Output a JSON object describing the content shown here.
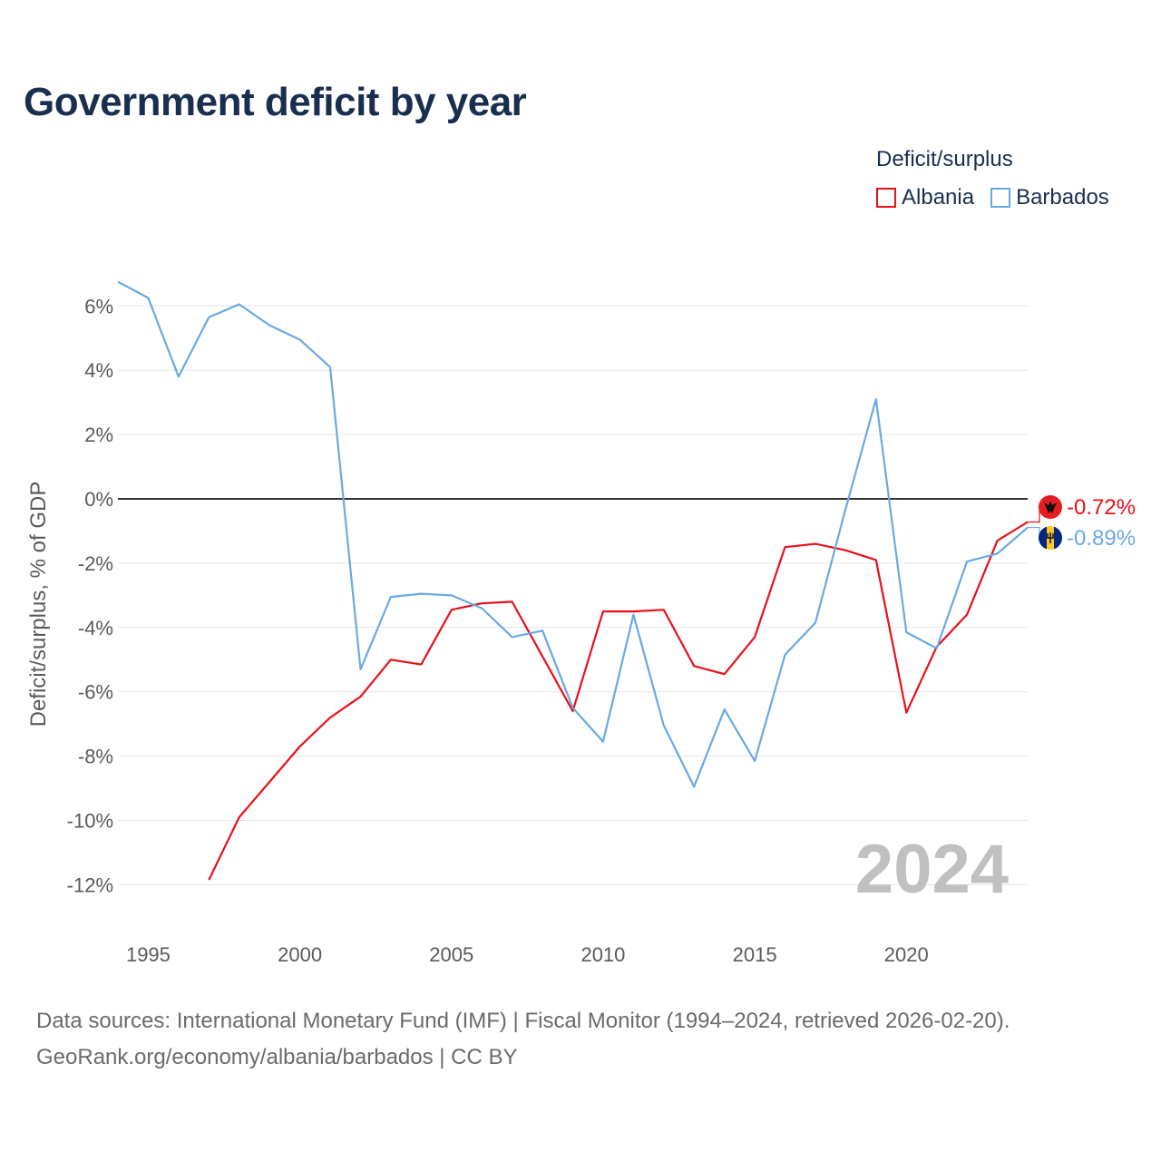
{
  "title": "Government deficit by year",
  "legend": {
    "title": "Deficit/surplus",
    "items": [
      {
        "label": "Albania",
        "color": "#e8101a"
      },
      {
        "label": "Barbados",
        "color": "#6aa9e4"
      }
    ]
  },
  "footer": {
    "line1": "Data sources: International Monetary Fund (IMF) | Fiscal Monitor (1994–2024, retrieved 2026-02-20).",
    "line2": "GeoRank.org/economy/albania/barbados | CC BY"
  },
  "chart_data": {
    "type": "line",
    "title": "Government deficit by year",
    "xlabel": "",
    "ylabel": "Deficit/surplus, % of GDP",
    "xlim": [
      1994,
      2024
    ],
    "ylim": [
      -13,
      7
    ],
    "year_label": "2024",
    "x_ticks": [
      {
        "value": 1995,
        "label": "1995"
      },
      {
        "value": 2000,
        "label": "2000"
      },
      {
        "value": 2005,
        "label": "2005"
      },
      {
        "value": 2010,
        "label": "2010"
      },
      {
        "value": 2015,
        "label": "2015"
      },
      {
        "value": 2020,
        "label": "2020"
      }
    ],
    "y_ticks": [
      {
        "value": 6,
        "label": "6%"
      },
      {
        "value": 4,
        "label": "4%"
      },
      {
        "value": 2,
        "label": "2%"
      },
      {
        "value": 0,
        "label": "0%"
      },
      {
        "value": -2,
        "label": "-2%"
      },
      {
        "value": -4,
        "label": "-4%"
      },
      {
        "value": -6,
        "label": "-6%"
      },
      {
        "value": -8,
        "label": "-8%"
      },
      {
        "value": -10,
        "label": "-10%"
      },
      {
        "value": -12,
        "label": "-12%"
      }
    ],
    "series": [
      {
        "name": "Albania",
        "color": "#e8101a",
        "end_label": "-0.72%",
        "flag_icon": "albania-flag-icon",
        "x": [
          1997,
          1998,
          1999,
          2000,
          2001,
          2002,
          2003,
          2004,
          2005,
          2006,
          2007,
          2008,
          2009,
          2010,
          2011,
          2012,
          2013,
          2014,
          2015,
          2016,
          2017,
          2018,
          2019,
          2020,
          2021,
          2022,
          2023,
          2024
        ],
        "values": [
          -11.85,
          -9.9,
          -8.8,
          -7.7,
          -6.8,
          -6.15,
          -5.0,
          -5.15,
          -3.45,
          -3.25,
          -3.2,
          -4.9,
          -6.6,
          -3.5,
          -3.5,
          -3.45,
          -5.2,
          -5.45,
          -4.3,
          -1.5,
          -1.4,
          -1.6,
          -1.9,
          -6.65,
          -4.6,
          -3.6,
          -1.3,
          -0.72
        ]
      },
      {
        "name": "Barbados",
        "color": "#6aa9e4",
        "end_label": "-0.89%",
        "flag_icon": "barbados-flag-icon",
        "x": [
          1994,
          1995,
          1996,
          1997,
          1998,
          1999,
          2000,
          2001,
          2002,
          2003,
          2004,
          2005,
          2006,
          2007,
          2008,
          2009,
          2010,
          2011,
          2012,
          2013,
          2014,
          2015,
          2016,
          2017,
          2018,
          2019,
          2020,
          2021,
          2022,
          2023,
          2024
        ],
        "values": [
          6.75,
          6.25,
          3.8,
          5.65,
          6.05,
          5.4,
          4.95,
          4.1,
          -5.3,
          -3.05,
          -2.95,
          -3.0,
          -3.4,
          -4.3,
          -4.1,
          -6.5,
          -7.55,
          -3.6,
          -7.05,
          -8.95,
          -6.55,
          -8.15,
          -4.85,
          -3.85,
          -0.3,
          3.1,
          -4.15,
          -4.65,
          -1.95,
          -1.7,
          -0.89
        ]
      }
    ]
  }
}
